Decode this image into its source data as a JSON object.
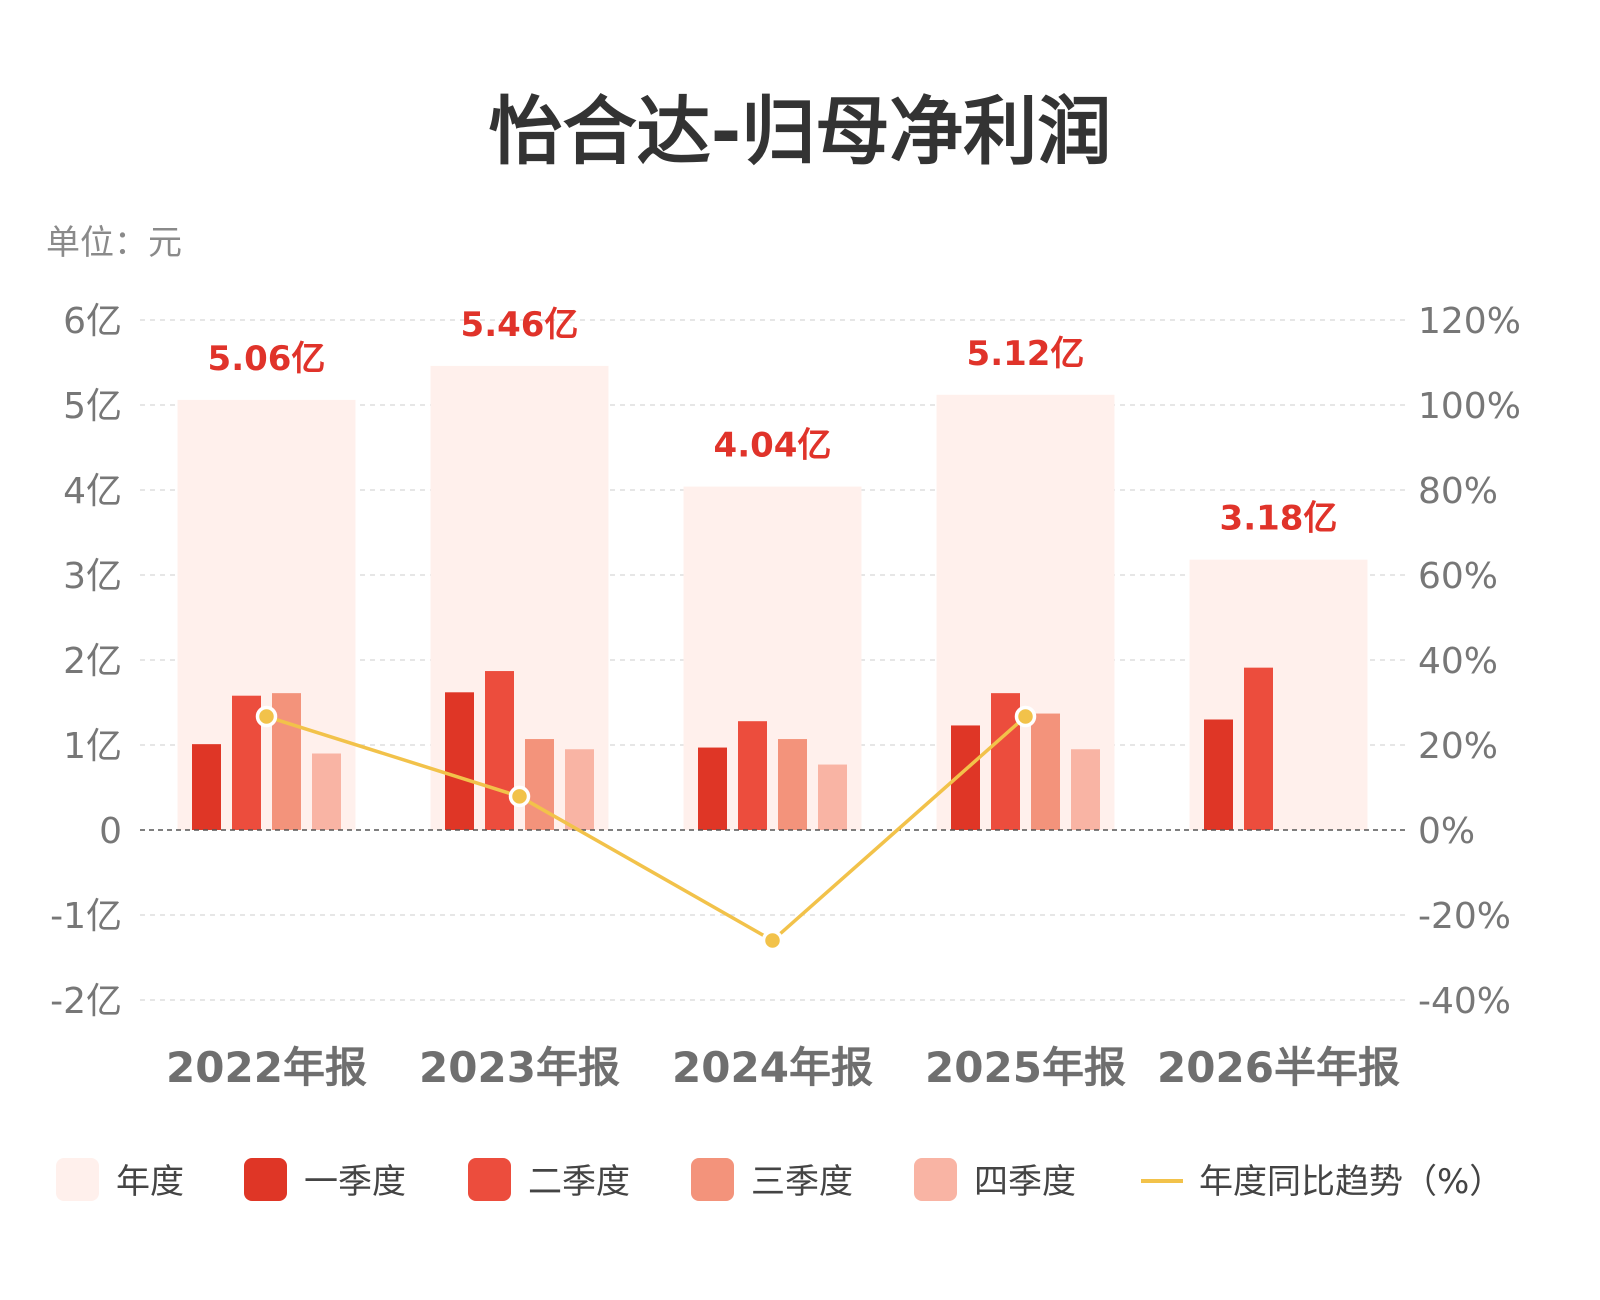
{
  "title": "怡合达-归母净利润",
  "unit_label": "单位：元",
  "colors": {
    "annual": "#fff0ec",
    "q1": "#df3626",
    "q2": "#ec4d3d",
    "q3": "#f3937b",
    "q4": "#f9b4a4",
    "trend": "#f2c24a",
    "total_label": "#e0332a"
  },
  "chart_data": {
    "type": "bar",
    "title": "怡合达-归母净利润",
    "unit": "单位：元",
    "categories": [
      "2022年报",
      "2023年报",
      "2024年报",
      "2025年报",
      "2026半年报"
    ],
    "annual": {
      "name": "年度",
      "values": [
        5.06,
        5.46,
        4.04,
        5.12,
        3.18
      ],
      "labels": [
        "5.06亿",
        "5.46亿",
        "4.04亿",
        "5.12亿",
        "3.18亿"
      ]
    },
    "series": [
      {
        "name": "一季度",
        "values": [
          1.01,
          1.62,
          0.97,
          1.23,
          1.3
        ]
      },
      {
        "name": "二季度",
        "values": [
          1.58,
          1.87,
          1.28,
          1.61,
          1.91
        ]
      },
      {
        "name": "三季度",
        "values": [
          1.61,
          1.07,
          1.07,
          1.37,
          null
        ]
      },
      {
        "name": "四季度",
        "values": [
          0.9,
          0.95,
          0.77,
          0.95,
          null
        ]
      }
    ],
    "trend": {
      "name": "年度同比趋势（%）",
      "values": [
        26.7,
        7.9,
        -26.0,
        26.7,
        null
      ]
    },
    "left_axis": {
      "range": [
        -2,
        6
      ],
      "ticks": [
        6,
        5,
        4,
        3,
        2,
        1,
        0,
        -1,
        -2
      ],
      "tick_labels": [
        "6亿",
        "5亿",
        "4亿",
        "3亿",
        "2亿",
        "1亿",
        "0",
        "-1亿",
        "-2亿"
      ]
    },
    "right_axis": {
      "range": [
        -40,
        120
      ],
      "ticks": [
        120,
        100,
        80,
        60,
        40,
        20,
        0,
        -20,
        -40
      ],
      "tick_labels": [
        "120%",
        "100%",
        "80%",
        "60%",
        "40%",
        "20%",
        "0%",
        "-20%",
        "-40%"
      ]
    },
    "grid": true,
    "legend": "bottom"
  },
  "legend": [
    {
      "label": "年度",
      "color_key": "annual",
      "shape": "box"
    },
    {
      "label": "一季度",
      "color_key": "q1",
      "shape": "box"
    },
    {
      "label": "二季度",
      "color_key": "q2",
      "shape": "box"
    },
    {
      "label": "三季度",
      "color_key": "q3",
      "shape": "box"
    },
    {
      "label": "四季度",
      "color_key": "q4",
      "shape": "box"
    },
    {
      "label": "年度同比趋势（%）",
      "color_key": "trend",
      "shape": "line"
    }
  ]
}
